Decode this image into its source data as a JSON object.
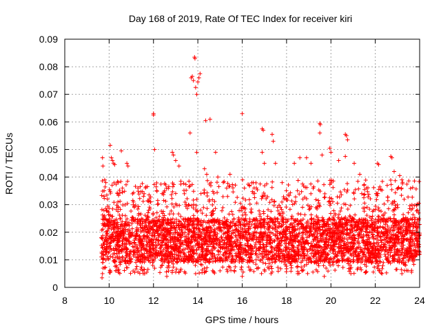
{
  "chart_data": {
    "type": "scatter",
    "title": "Day 168 of 2019, Rate Of TEC Index for receiver kiri",
    "xlabel": "GPS time / hours",
    "ylabel": "ROTI / TECUs",
    "xlim": [
      8,
      24
    ],
    "ylim": [
      0,
      0.09
    ],
    "x_ticks": [
      "8",
      "10",
      "12",
      "14",
      "16",
      "18",
      "20",
      "22",
      "24"
    ],
    "y_ticks": [
      "0",
      "0.01",
      "0.02",
      "0.03",
      "0.04",
      "0.05",
      "0.06",
      "0.07",
      "0.08",
      "0.09"
    ],
    "grid": true,
    "marker": "+",
    "color": "#ff0000",
    "data_start_hour": 9.65,
    "data_end_hour": 24,
    "typical_range": [
      0.005,
      0.03
    ],
    "series": [
      {
        "name": "ROTI",
        "points": [
          [
            9.68,
            0.0035
          ],
          [
            9.7,
            0.047
          ],
          [
            9.72,
            0.044
          ],
          [
            9.8,
            0.039
          ],
          [
            9.85,
            0.038
          ],
          [
            10.05,
            0.0515
          ],
          [
            10.1,
            0.047
          ],
          [
            10.15,
            0.046
          ],
          [
            10.2,
            0.045
          ],
          [
            10.25,
            0.0445
          ],
          [
            10.55,
            0.0495
          ],
          [
            10.8,
            0.045
          ],
          [
            10.85,
            0.044
          ],
          [
            10.6,
            0.036
          ],
          [
            10.4,
            0.034
          ],
          [
            11.3,
            0.036
          ],
          [
            11.55,
            0.033
          ],
          [
            12.0,
            0.063
          ],
          [
            12.0,
            0.0625
          ],
          [
            12.05,
            0.05
          ],
          [
            12.5,
            0.035
          ],
          [
            12.85,
            0.049
          ],
          [
            12.9,
            0.048
          ],
          [
            13.0,
            0.046
          ],
          [
            13.15,
            0.044
          ],
          [
            13.6,
            0.0385
          ],
          [
            13.65,
            0.056
          ],
          [
            13.7,
            0.076
          ],
          [
            13.75,
            0.0765
          ],
          [
            13.8,
            0.075
          ],
          [
            13.85,
            0.0835
          ],
          [
            13.87,
            0.083
          ],
          [
            13.9,
            0.0725
          ],
          [
            13.95,
            0.07
          ],
          [
            14.0,
            0.0745
          ],
          [
            14.05,
            0.076
          ],
          [
            14.1,
            0.0775
          ],
          [
            13.95,
            0.049
          ],
          [
            14.3,
            0.043
          ],
          [
            14.35,
            0.0605
          ],
          [
            14.55,
            0.061
          ],
          [
            14.4,
            0.041
          ],
          [
            14.8,
            0.049
          ],
          [
            14.9,
            0.04
          ],
          [
            15.3,
            0.036
          ],
          [
            15.45,
            0.041
          ],
          [
            16.0,
            0.063
          ],
          [
            16.1,
            0.036
          ],
          [
            16.5,
            0.038
          ],
          [
            16.9,
            0.0575
          ],
          [
            16.95,
            0.057
          ],
          [
            16.9,
            0.049
          ],
          [
            17.0,
            0.045
          ],
          [
            17.35,
            0.0555
          ],
          [
            17.4,
            0.053
          ],
          [
            17.5,
            0.045
          ],
          [
            17.8,
            0.038
          ],
          [
            18.35,
            0.045
          ],
          [
            18.6,
            0.047
          ],
          [
            18.9,
            0.047
          ],
          [
            19.1,
            0.045
          ],
          [
            19.5,
            0.0595
          ],
          [
            19.52,
            0.059
          ],
          [
            19.5,
            0.056
          ],
          [
            19.6,
            0.048
          ],
          [
            19.95,
            0.0505
          ],
          [
            20.0,
            0.049
          ],
          [
            20.35,
            0.046
          ],
          [
            20.65,
            0.0555
          ],
          [
            20.7,
            0.055
          ],
          [
            20.75,
            0.0535
          ],
          [
            20.65,
            0.0475
          ],
          [
            21.05,
            0.045
          ],
          [
            21.3,
            0.041
          ],
          [
            21.6,
            0.036
          ],
          [
            22.1,
            0.045
          ],
          [
            22.15,
            0.0445
          ],
          [
            22.7,
            0.0475
          ],
          [
            22.75,
            0.047
          ],
          [
            22.85,
            0.042
          ],
          [
            23.1,
            0.0405
          ],
          [
            23.2,
            0.039
          ],
          [
            23.9,
            0.028
          ],
          [
            23.95,
            0.027
          ],
          [
            9.7,
            0.005
          ],
          [
            10.3,
            0.006
          ],
          [
            11.6,
            0.005
          ],
          [
            12.6,
            0.004
          ],
          [
            13.9,
            0.005
          ],
          [
            15.0,
            0.006
          ],
          [
            16.0,
            0.004
          ],
          [
            17.3,
            0.005
          ],
          [
            18.5,
            0.005
          ],
          [
            19.7,
            0.004
          ],
          [
            20.9,
            0.005
          ],
          [
            22.3,
            0.005
          ],
          [
            23.2,
            0.005
          ]
        ]
      }
    ]
  }
}
